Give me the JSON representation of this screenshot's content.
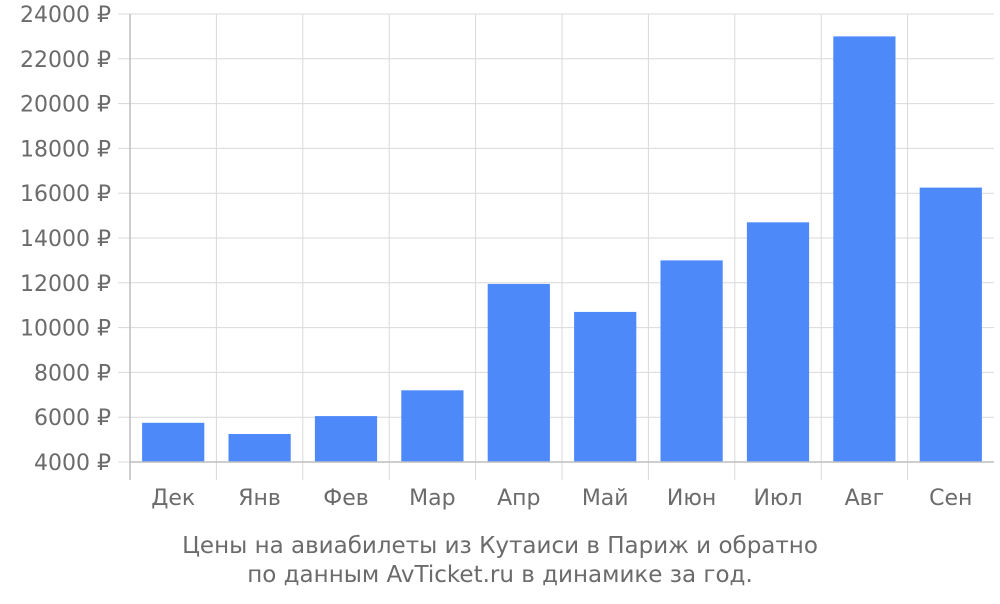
{
  "chart_data": {
    "type": "bar",
    "categories": [
      "Дек",
      "Янв",
      "Фев",
      "Мар",
      "Апр",
      "Май",
      "Июн",
      "Июл",
      "Авг",
      "Сен"
    ],
    "values": [
      5750,
      5250,
      6050,
      7200,
      11950,
      10700,
      13000,
      14700,
      23000,
      16250
    ],
    "ylim": [
      4000,
      24000
    ],
    "yticks": [
      4000,
      6000,
      8000,
      10000,
      12000,
      14000,
      16000,
      18000,
      20000,
      22000,
      24000
    ],
    "ytick_labels": [
      "4000 ₽",
      "6000 ₽",
      "8000 ₽",
      "10000 ₽",
      "12000 ₽",
      "14000 ₽",
      "16000 ₽",
      "18000 ₽",
      "20000 ₽",
      "22000 ₽",
      "24000 ₽"
    ],
    "bar_color": "#4d89f9",
    "grid": true,
    "caption_line1": "Цены на авиабилеты из Кутаиси в Париж и обратно",
    "caption_line2": "по данным AvTicket.ru в динамике за год."
  }
}
